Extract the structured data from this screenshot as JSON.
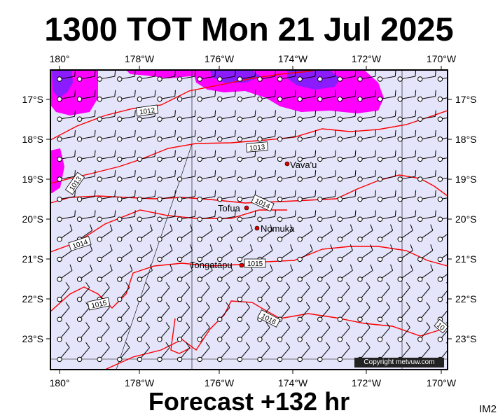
{
  "title": "1300 TOT Mon 21 Jul 2025",
  "subtitle": "Forecast +132 hr",
  "corner_id": "IM2",
  "copyright": "Copyright metvuw.com",
  "colors": {
    "background": "#e4e4fa",
    "isobar": "#ff0000",
    "rain_light": "#ff00ff",
    "rain_heavy": "#8a1cff",
    "frame": "#000000"
  },
  "axes": {
    "top_lon_labels": [
      "180°",
      "178°W",
      "176°W",
      "174°W",
      "172°W",
      "170°W"
    ],
    "bottom_lon_labels": [
      "180°",
      "178°W",
      "176°W",
      "174°W",
      "172°W",
      "170°W"
    ],
    "left_lat_labels": [
      "17°S",
      "18°S",
      "19°S",
      "20°S",
      "21°S",
      "22°S",
      "23°S"
    ],
    "right_lat_labels": [
      "17°S",
      "18°S",
      "19°S",
      "20°S",
      "21°S",
      "22°S",
      "23°S"
    ]
  },
  "places": [
    {
      "name": "Vava'u",
      "lon": -174.0,
      "lat": -18.65
    },
    {
      "name": "Tofua",
      "lon": -175.05,
      "lat": -19.75
    },
    {
      "name": "Nomuka",
      "lon": -174.8,
      "lat": -20.25
    },
    {
      "name": "Tongatapu",
      "lon": -175.2,
      "lat": -21.15
    }
  ],
  "isobars": [
    {
      "label": "1012"
    },
    {
      "label": "1013"
    },
    {
      "label": "1013"
    },
    {
      "label": "1014"
    },
    {
      "label": "1014"
    },
    {
      "label": "1015"
    },
    {
      "label": "1015"
    },
    {
      "label": "1016"
    },
    {
      "label": "10"
    }
  ]
}
